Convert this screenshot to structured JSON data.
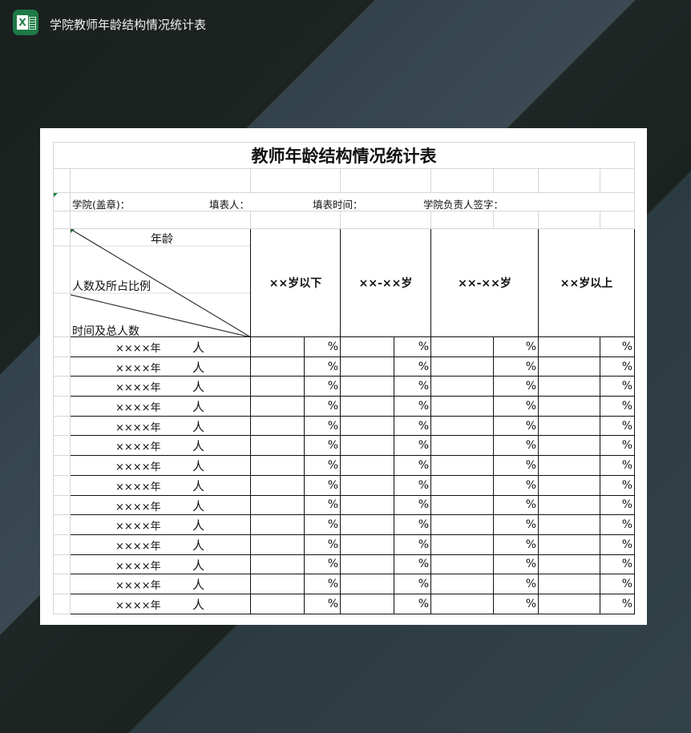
{
  "window": {
    "title": "学院教师年龄结构情况统计表",
    "app_icon": "excel-icon",
    "accent": "#1f7a45"
  },
  "sheet": {
    "title": "教师年龄结构情况统计表",
    "info": {
      "college": "学院(盖章)：",
      "filler": "填表人：",
      "fill_time": "填表时间：",
      "signature": "学院负责人签字："
    },
    "corner_header": {
      "age": "年龄",
      "count_ratio": "人数及所占比例",
      "time_total": "时间及总人数"
    },
    "age_groups": [
      "××岁以下",
      "××-××岁",
      "××-××岁",
      "××岁以上"
    ],
    "rows": [
      {
        "period": "××××年",
        "unit": "人",
        "pct": "%"
      },
      {
        "period": "××××年",
        "unit": "人",
        "pct": "%"
      },
      {
        "period": "××××年",
        "unit": "人",
        "pct": "%"
      },
      {
        "period": "××××年",
        "unit": "人",
        "pct": "%"
      },
      {
        "period": "××××年",
        "unit": "人",
        "pct": "%"
      },
      {
        "period": "××××年",
        "unit": "人",
        "pct": "%"
      },
      {
        "period": "××××年",
        "unit": "人",
        "pct": "%"
      },
      {
        "period": "××××年",
        "unit": "人",
        "pct": "%"
      },
      {
        "period": "××××年",
        "unit": "人",
        "pct": "%"
      },
      {
        "period": "××××年",
        "unit": "人",
        "pct": "%"
      },
      {
        "period": "××××年",
        "unit": "人",
        "pct": "%"
      },
      {
        "period": "××××年",
        "unit": "人",
        "pct": "%"
      },
      {
        "period": "××××年",
        "unit": "人",
        "pct": "%"
      },
      {
        "period": "××××年",
        "unit": "人",
        "pct": "%"
      }
    ]
  }
}
